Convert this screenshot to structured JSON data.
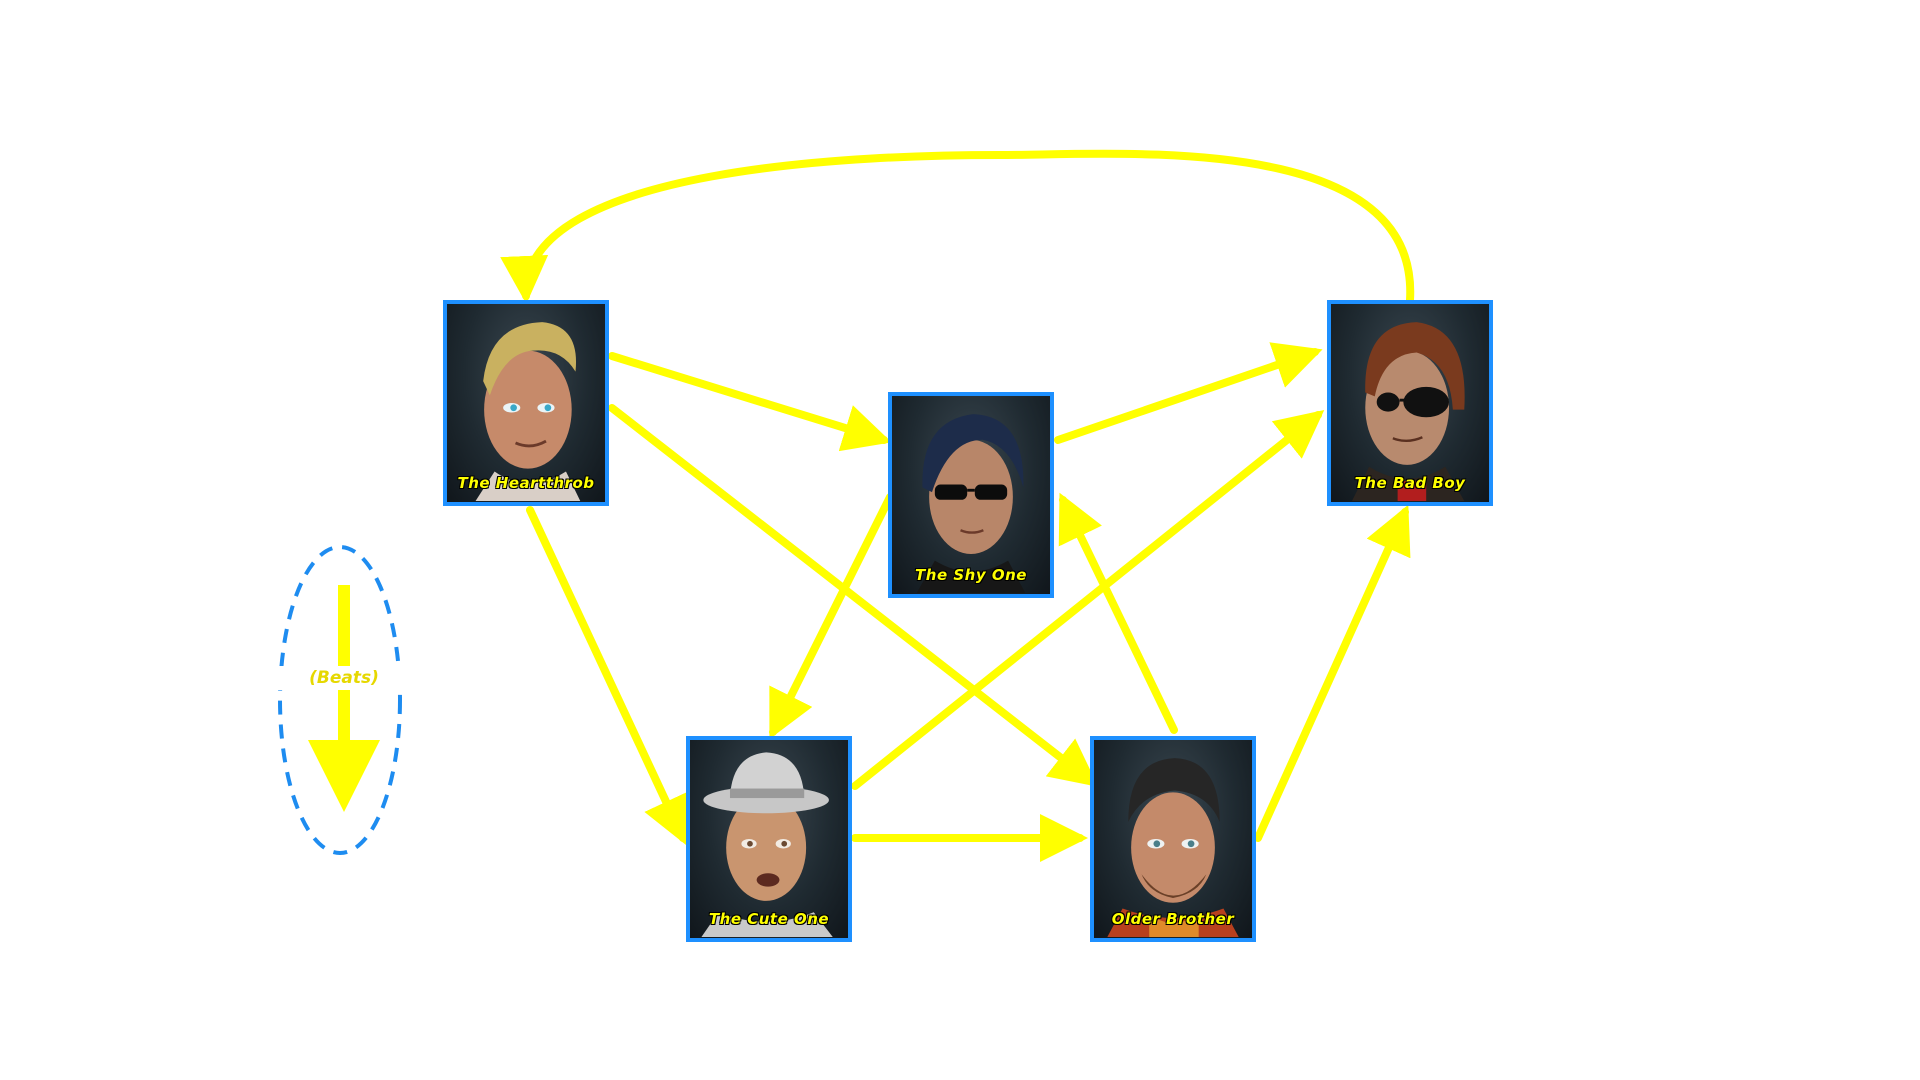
{
  "colors": {
    "edge": "#ffff00",
    "card_border": "#1e90ff",
    "legend_ellipse": "#1e8cf0",
    "label_text": "#ffff00"
  },
  "nodes": [
    {
      "id": "heartthrob",
      "label": "The Heartthrob",
      "icon": "blond-young-man-portrait"
    },
    {
      "id": "shy",
      "label": "The Shy One",
      "icon": "sunglasses-dark-hair-portrait"
    },
    {
      "id": "badboy",
      "label": "The Bad Boy",
      "icon": "eyepatch-beanie-portrait"
    },
    {
      "id": "cute",
      "label": "The Cute One",
      "icon": "fedora-young-man-portrait"
    },
    {
      "id": "older",
      "label": "Older Brother",
      "icon": "bearded-beanie-portrait"
    }
  ],
  "edges": [
    {
      "from": "heartthrob",
      "to": "shy"
    },
    {
      "from": "heartthrob",
      "to": "older"
    },
    {
      "from": "heartthrob",
      "to": "cute"
    },
    {
      "from": "shy",
      "to": "badboy"
    },
    {
      "from": "shy",
      "to": "cute"
    },
    {
      "from": "cute",
      "to": "badboy"
    },
    {
      "from": "cute",
      "to": "older"
    },
    {
      "from": "older",
      "to": "shy"
    },
    {
      "from": "older",
      "to": "badboy"
    },
    {
      "from": "badboy",
      "to": "heartthrob"
    }
  ],
  "legend": {
    "label": "(Beats)"
  }
}
